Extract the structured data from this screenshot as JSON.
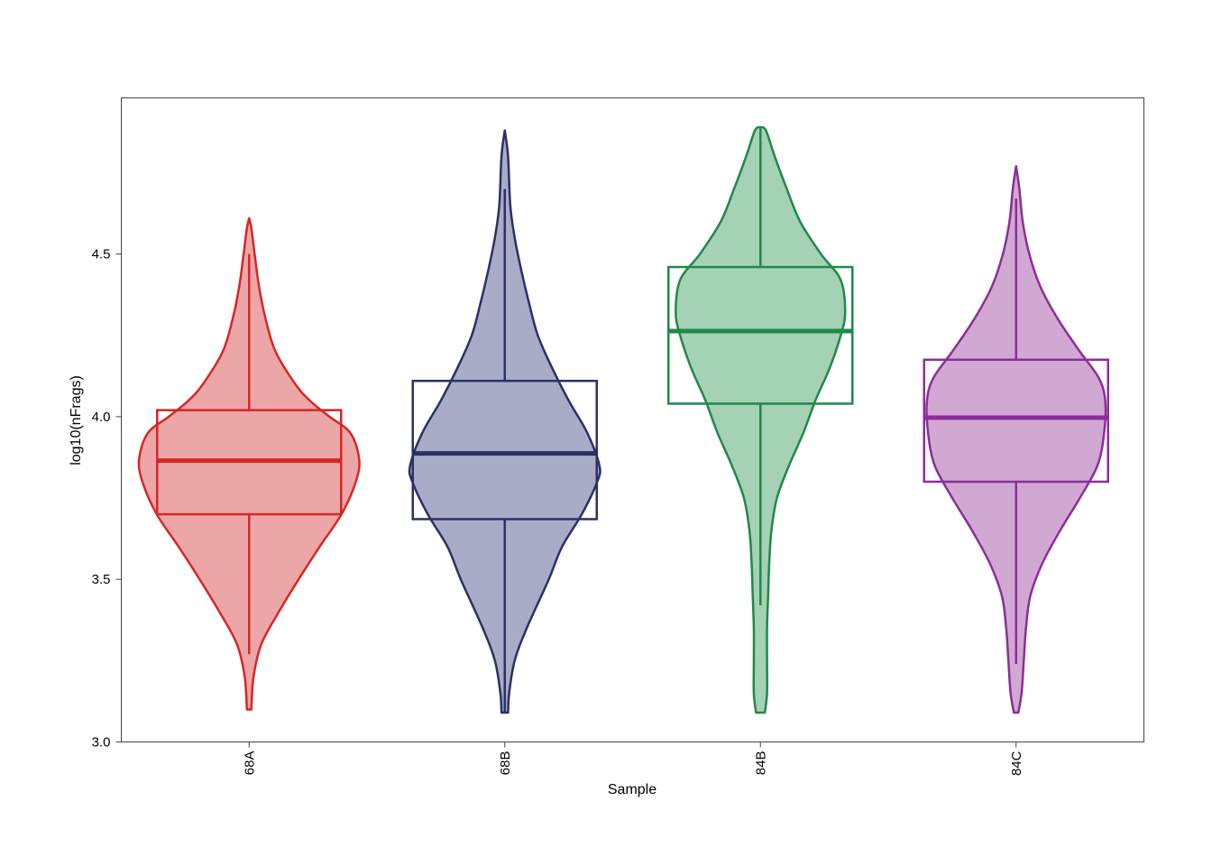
{
  "chart_data": {
    "type": "violin",
    "xlabel": "Sample",
    "ylabel": "log10(nFrags)",
    "ylim": [
      3.0,
      4.98
    ],
    "yticks": [
      "3.0",
      "3.5",
      "4.0",
      "4.5"
    ],
    "grid": false,
    "legend": "none",
    "categories": [
      "68A",
      "68B",
      "84B",
      "84C"
    ],
    "series": [
      {
        "category": "68A",
        "color": "#D62728",
        "fill": "#EDA6A8",
        "box": {
          "q1": 3.7,
          "median": 3.865,
          "q3": 4.02,
          "whisker_low": 3.27,
          "whisker_high": 4.5
        },
        "density": [
          [
            3.1,
            0.02
          ],
          [
            3.2,
            0.04
          ],
          [
            3.3,
            0.11
          ],
          [
            3.4,
            0.27
          ],
          [
            3.5,
            0.45
          ],
          [
            3.6,
            0.64
          ],
          [
            3.7,
            0.84
          ],
          [
            3.8,
            0.97
          ],
          [
            3.87,
            1.0
          ],
          [
            3.95,
            0.92
          ],
          [
            4.0,
            0.73
          ],
          [
            4.05,
            0.55
          ],
          [
            4.1,
            0.42
          ],
          [
            4.2,
            0.24
          ],
          [
            4.3,
            0.15
          ],
          [
            4.4,
            0.09
          ],
          [
            4.5,
            0.05
          ],
          [
            4.58,
            0.02
          ],
          [
            4.61,
            0.0
          ]
        ]
      },
      {
        "category": "68B",
        "color": "#2A3166",
        "fill": "#A9ACC6",
        "box": {
          "q1": 3.685,
          "median": 3.887,
          "q3": 4.11,
          "whisker_low": 3.09,
          "whisker_high": 4.7
        },
        "density": [
          [
            3.09,
            0.03
          ],
          [
            3.15,
            0.04
          ],
          [
            3.25,
            0.09
          ],
          [
            3.35,
            0.2
          ],
          [
            3.5,
            0.4
          ],
          [
            3.6,
            0.52
          ],
          [
            3.7,
            0.7
          ],
          [
            3.8,
            0.84
          ],
          [
            3.85,
            0.86
          ],
          [
            3.95,
            0.75
          ],
          [
            4.05,
            0.58
          ],
          [
            4.15,
            0.43
          ],
          [
            4.25,
            0.3
          ],
          [
            4.35,
            0.22
          ],
          [
            4.45,
            0.15
          ],
          [
            4.55,
            0.09
          ],
          [
            4.65,
            0.05
          ],
          [
            4.8,
            0.03
          ],
          [
            4.88,
            0.0
          ]
        ]
      },
      {
        "category": "84B",
        "color": "#21884A",
        "fill": "#A5D1B5",
        "box": {
          "q1": 4.04,
          "median": 4.263,
          "q3": 4.46,
          "whisker_low": 3.42,
          "whisker_high": 4.89
        },
        "density": [
          [
            3.09,
            0.04
          ],
          [
            3.15,
            0.06
          ],
          [
            3.25,
            0.06
          ],
          [
            3.35,
            0.06
          ],
          [
            3.45,
            0.07
          ],
          [
            3.55,
            0.08
          ],
          [
            3.65,
            0.1
          ],
          [
            3.75,
            0.15
          ],
          [
            3.85,
            0.26
          ],
          [
            3.95,
            0.39
          ],
          [
            4.05,
            0.5
          ],
          [
            4.15,
            0.63
          ],
          [
            4.25,
            0.73
          ],
          [
            4.32,
            0.77
          ],
          [
            4.42,
            0.73
          ],
          [
            4.5,
            0.55
          ],
          [
            4.6,
            0.36
          ],
          [
            4.7,
            0.24
          ],
          [
            4.8,
            0.13
          ],
          [
            4.88,
            0.05
          ],
          [
            4.89,
            0.0
          ]
        ]
      },
      {
        "category": "84C",
        "color": "#8B2E99",
        "fill": "#D1A8D2",
        "box": {
          "q1": 3.8,
          "median": 3.997,
          "q3": 4.175,
          "whisker_low": 3.24,
          "whisker_high": 4.67
        },
        "density": [
          [
            3.09,
            0.02
          ],
          [
            3.15,
            0.05
          ],
          [
            3.25,
            0.07
          ],
          [
            3.35,
            0.09
          ],
          [
            3.45,
            0.13
          ],
          [
            3.55,
            0.24
          ],
          [
            3.65,
            0.4
          ],
          [
            3.75,
            0.58
          ],
          [
            3.85,
            0.74
          ],
          [
            3.95,
            0.8
          ],
          [
            4.05,
            0.81
          ],
          [
            4.12,
            0.75
          ],
          [
            4.2,
            0.58
          ],
          [
            4.3,
            0.38
          ],
          [
            4.4,
            0.22
          ],
          [
            4.5,
            0.12
          ],
          [
            4.6,
            0.06
          ],
          [
            4.7,
            0.03
          ],
          [
            4.77,
            0.0
          ]
        ]
      }
    ]
  }
}
